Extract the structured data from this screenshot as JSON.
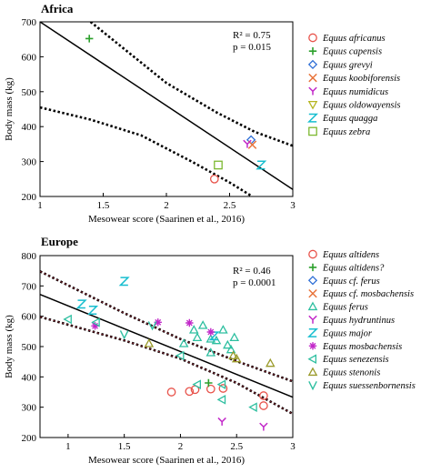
{
  "chart_data": [
    {
      "type": "scatter",
      "title": "Africa",
      "xlabel": "Mesowear score (Saarinen et al., 2016)",
      "ylabel": "Body mass (kg)",
      "xlim": [
        1,
        3
      ],
      "ylim": [
        200,
        700
      ],
      "xticks": [
        "1",
        "1.5",
        "2",
        "2.5",
        "3"
      ],
      "yticks": [
        "200",
        "300",
        "400",
        "500",
        "600",
        "700"
      ],
      "stats": {
        "r2_label": "R² = 0.75",
        "p_label": "p = 0.015"
      },
      "regression": {
        "fit": [
          [
            1,
            700
          ],
          [
            3,
            220
          ]
        ],
        "ci_upper": [
          [
            1.4,
            700
          ],
          [
            2.0,
            525
          ],
          [
            2.4,
            440
          ],
          [
            2.7,
            385
          ],
          [
            3.0,
            345
          ]
        ],
        "ci_lower": [
          [
            1.0,
            455
          ],
          [
            1.4,
            420
          ],
          [
            1.8,
            375
          ],
          [
            2.2,
            300
          ],
          [
            2.5,
            240
          ],
          [
            2.68,
            200
          ]
        ]
      },
      "series": [
        {
          "name": "Equus africanus",
          "symbol": "circle",
          "color": "#e8534b",
          "points": [
            [
              2.38,
              250
            ]
          ]
        },
        {
          "name": "Equus capensis",
          "symbol": "plus",
          "color": "#2ca02c",
          "points": [
            [
              1.39,
              652
            ]
          ]
        },
        {
          "name": "Equus grevyi",
          "symbol": "diamond",
          "color": "#2f6fd6",
          "points": [
            [
              2.67,
              362
            ]
          ]
        },
        {
          "name": "Equus koobiforensis",
          "symbol": "x",
          "color": "#e8743b",
          "points": [
            [
              2.68,
              348
            ]
          ]
        },
        {
          "name": "Equus numidicus",
          "symbol": "y",
          "color": "#c229c9",
          "points": [
            [
              2.64,
              350
            ]
          ]
        },
        {
          "name": "Equus oldowayensis",
          "symbol": "triangle-down",
          "color": "#b5b51f",
          "points": []
        },
        {
          "name": "Equus quagga",
          "symbol": "z",
          "color": "#17becf",
          "points": [
            [
              2.75,
              290
            ]
          ]
        },
        {
          "name": "Equus zebra",
          "symbol": "square",
          "color": "#7cb82f",
          "points": [
            [
              2.41,
              290
            ]
          ]
        }
      ]
    },
    {
      "type": "scatter",
      "title": "Europe",
      "xlabel": "Mesowear score (Saarinen et al., 2016)",
      "ylabel": "Body mass (kg)",
      "xlim": [
        0.75,
        3
      ],
      "ylim": [
        200,
        800
      ],
      "xticks": [
        "1",
        "1.5",
        "2",
        "2.5",
        "3"
      ],
      "yticks": [
        "200",
        "300",
        "400",
        "500",
        "600",
        "700",
        "800"
      ],
      "stats": {
        "r2_label": "R² = 0.46",
        "p_label": "p = 0.0001"
      },
      "regression": {
        "fit": [
          [
            0.75,
            672
          ],
          [
            3,
            333
          ]
        ],
        "ci_upper": [
          [
            0.75,
            748
          ],
          [
            1.5,
            610
          ],
          [
            2.0,
            525
          ],
          [
            2.5,
            452
          ],
          [
            3.0,
            385
          ]
        ],
        "ci_lower": [
          [
            0.75,
            598
          ],
          [
            1.5,
            520
          ],
          [
            2.0,
            460
          ],
          [
            2.5,
            380
          ],
          [
            3.0,
            278
          ]
        ]
      },
      "series": [
        {
          "name": "Equus altidens",
          "symbol": "circle",
          "color": "#e8534b",
          "points": [
            [
              1.92,
              350
            ],
            [
              2.08,
              352
            ],
            [
              2.13,
              358
            ],
            [
              2.27,
              360
            ],
            [
              2.38,
              362
            ],
            [
              2.74,
              338
            ],
            [
              2.74,
              305
            ]
          ]
        },
        {
          "name": "Equus altidens?",
          "symbol": "plus",
          "color": "#2ca02c",
          "points": [
            [
              2.25,
              380
            ]
          ]
        },
        {
          "name": "Equus cf. ferus",
          "symbol": "diamond",
          "color": "#2f6fd6",
          "points": []
        },
        {
          "name": "Equus cf. mosbachensis",
          "symbol": "x",
          "color": "#e8743b",
          "points": []
        },
        {
          "name": "Equus ferus",
          "symbol": "triangle",
          "color": "#2ebfa0",
          "points": [
            [
              2.15,
              530
            ],
            [
              2.12,
              555
            ],
            [
              2.2,
              570
            ],
            [
              2.27,
              525
            ],
            [
              2.32,
              520
            ],
            [
              2.38,
              555
            ],
            [
              2.42,
              505
            ],
            [
              2.45,
              490
            ],
            [
              2.48,
              530
            ],
            [
              2.27,
              480
            ],
            [
              2.03,
              510
            ]
          ]
        },
        {
          "name": "Equus hydruntinus",
          "symbol": "y",
          "color": "#c229c9",
          "points": [
            [
              2.37,
              252
            ],
            [
              2.74,
              235
            ]
          ]
        },
        {
          "name": "Equus major",
          "symbol": "z",
          "color": "#17becf",
          "points": [
            [
              1.5,
              715
            ],
            [
              1.12,
              640
            ],
            [
              1.22,
              620
            ],
            [
              2.3,
              535
            ]
          ]
        },
        {
          "name": "Equus mosbachensis",
          "symbol": "asterisk",
          "color": "#c229c9",
          "points": [
            [
              1.24,
              568
            ],
            [
              1.8,
              580
            ],
            [
              2.08,
              578
            ],
            [
              2.27,
              548
            ]
          ]
        },
        {
          "name": "Equus senezensis",
          "symbol": "triangle-left",
          "color": "#2ebfa0",
          "points": [
            [
              1.0,
              590
            ],
            [
              1.25,
              580
            ],
            [
              2.0,
              470
            ],
            [
              2.15,
              375
            ],
            [
              2.37,
              375
            ],
            [
              2.37,
              325
            ],
            [
              2.65,
              300
            ]
          ]
        },
        {
          "name": "Equus stenonis",
          "symbol": "triangle-up-open",
          "color": "#9a9a2a",
          "points": [
            [
              1.72,
              510
            ],
            [
              2.47,
              470
            ],
            [
              2.5,
              460
            ],
            [
              2.8,
              445
            ]
          ]
        },
        {
          "name": "Equus suessenbornensis",
          "symbol": "v",
          "color": "#2ebfa0",
          "points": [
            [
              1.5,
              540
            ],
            [
              1.75,
              570
            ]
          ]
        }
      ]
    }
  ]
}
